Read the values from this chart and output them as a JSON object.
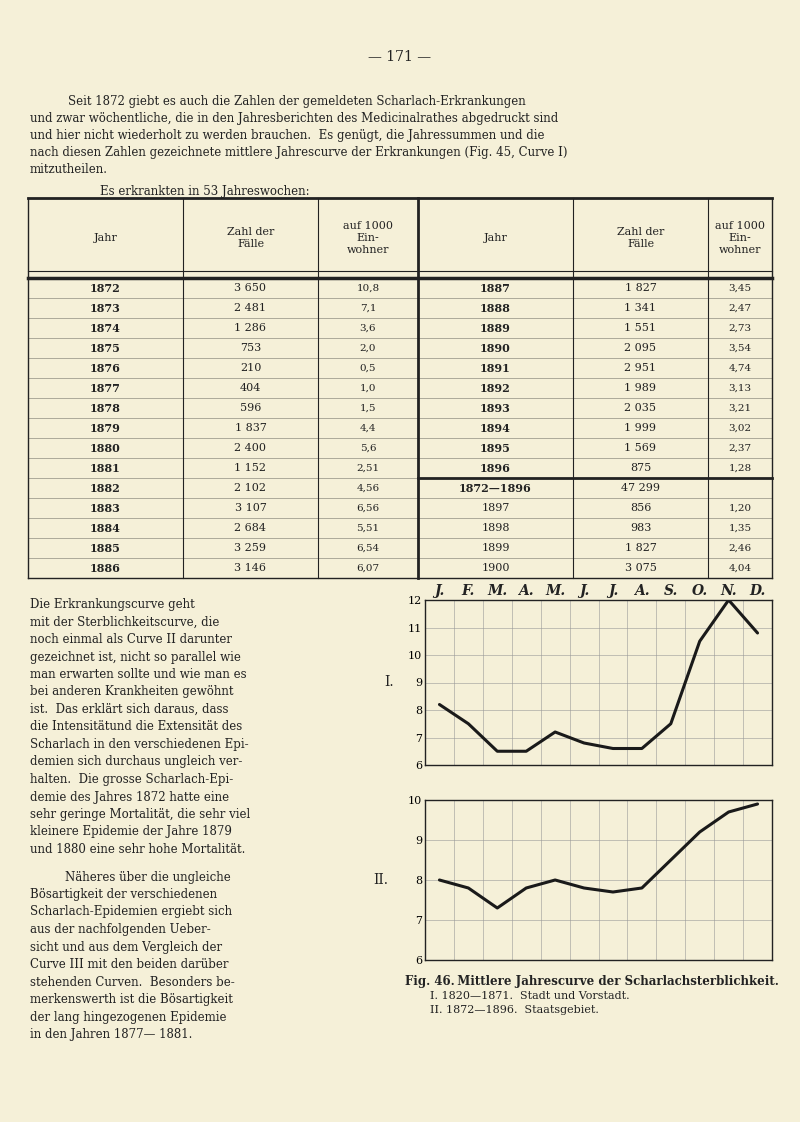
{
  "page_number": "171",
  "bg_color": "#f5f0d8",
  "intro_text_lines": [
    [
      "indent",
      "Seit 1872 giebt es auch die Zahlen der gemeldeten Scharlach-Erkrankungen"
    ],
    [
      "left",
      "und zwar wöchentliche, die in den Jahresberichten des Medicinalrathes abgedruckt sind"
    ],
    [
      "left",
      "und hier nicht wiederholt zu werden brauchen.  Es genügt, die Jahressummen und die"
    ],
    [
      "left",
      "nach diesen Zahlen gezeichnete mittlere Jahrescurve der Erkrankungen (Fig. 45, Curve I)"
    ],
    [
      "left",
      "mitzutheilen."
    ]
  ],
  "table_title": "Es erkrankten in 53 Jahreswochen:",
  "table_left": [
    [
      "1872",
      "3 650",
      "10,8"
    ],
    [
      "1873",
      "2 481",
      "7,1"
    ],
    [
      "1874",
      "1 286",
      "3,6"
    ],
    [
      "1875",
      "753",
      "2,0"
    ],
    [
      "1876",
      "210",
      "0,5"
    ],
    [
      "1877",
      "404",
      "1,0"
    ],
    [
      "1878",
      "596",
      "1,5"
    ],
    [
      "1879",
      "1 837",
      "4,4"
    ],
    [
      "1880",
      "2 400",
      "5,6"
    ],
    [
      "1881",
      "1 152",
      "2,51"
    ],
    [
      "1882",
      "2 102",
      "4,56"
    ],
    [
      "1883",
      "3 107",
      "6,56"
    ],
    [
      "1884",
      "2 684",
      "5,51"
    ],
    [
      "1885",
      "3 259",
      "6,54"
    ],
    [
      "1886",
      "3 146",
      "6,07"
    ]
  ],
  "table_right": [
    [
      "1887",
      "1 827",
      "3,45"
    ],
    [
      "1888",
      "1 341",
      "2,47"
    ],
    [
      "1889",
      "1 551",
      "2,73"
    ],
    [
      "1890",
      "2 095",
      "3,54"
    ],
    [
      "1891",
      "2 951",
      "4,74"
    ],
    [
      "1892",
      "1 989",
      "3,13"
    ],
    [
      "1893",
      "2 035",
      "3,21"
    ],
    [
      "1894",
      "1 999",
      "3,02"
    ],
    [
      "1895",
      "1 569",
      "2,37"
    ],
    [
      "1896",
      "875",
      "1,28"
    ],
    [
      "1872—1896",
      "47 299",
      ""
    ],
    [
      "1897",
      "856",
      "1,20"
    ],
    [
      "1898",
      "983",
      "1,35"
    ],
    [
      "1899",
      "1 827",
      "2,46"
    ],
    [
      "1900",
      "3 075",
      "4,04"
    ]
  ],
  "para1_lines": [
    "Die Erkrankungscurve geht",
    "mit der Sterblichkeitscurve, die",
    "noch einmal als Curve II darunter",
    "gezeichnet ist, nicht so parallel wie",
    "man erwarten sollte und wie man es",
    "bei anderen Krankheiten gewöhnt",
    "ist.  Das erklärt sich daraus, dass",
    "die Intensitätund die Extensität des",
    "Scharlach in den verschiedenen Epi-",
    "demien sich durchaus ungleich ver-",
    "halten.  Die grosse Scharlach-Epi-",
    "demie des Jahres 1872 hatte eine",
    "sehr geringe Mortalität, die sehr viel",
    "kleinere Epidemie der Jahre 1879",
    "und 1880 eine sehr hohe Mortalität."
  ],
  "para2_lines": [
    "Näheres über die ungleiche",
    "Bösartigkeit der verschiedenen",
    "Scharlach-Epidemien ergiebt sich",
    "aus der nachfolgenden Ueber-",
    "sicht und aus dem Vergleich der",
    "Curve III mit den beiden darüber",
    "stehenden Curven.  Besonders be-",
    "merkenswerth ist die Bösartigkeit",
    "der lang hingezogenen Epidemie",
    "in den Jahren 1877— 1881."
  ],
  "month_labels": [
    "J.",
    "F.",
    "M.",
    "A.",
    "M.",
    "J.",
    "J.",
    "A.",
    "S.",
    "O.",
    "N.",
    "D."
  ],
  "curve1_label": "I.",
  "curve1_y": [
    8.2,
    7.5,
    6.5,
    6.5,
    7.2,
    6.8,
    6.6,
    6.6,
    7.5,
    10.5,
    12.0,
    10.8
  ],
  "curve1_ylim": [
    6,
    12
  ],
  "curve1_yticks": [
    6,
    7,
    8,
    9,
    10,
    11,
    12
  ],
  "curve2_label": "II.",
  "curve2_y": [
    8.0,
    7.8,
    7.3,
    7.8,
    8.0,
    7.8,
    7.7,
    7.8,
    8.5,
    9.2,
    9.7,
    9.9
  ],
  "curve2_ylim": [
    6,
    10
  ],
  "curve2_yticks": [
    6,
    7,
    8,
    9,
    10
  ],
  "fig_caption_bold": "Fig. 46.",
  "fig_caption_rest": "  Mittlere Jahrescurve der Scharlachsterblichkeit.",
  "fig_subcaption1": "I. 1820—1871.  Stadt und Vorstadt.",
  "fig_subcaption2": "II. 1872—1896.  Staatsgebiet.",
  "line_color": "#1a1a1a",
  "grid_color": "#999999",
  "table_line_color": "#222222",
  "text_color": "#222222",
  "text_fs": 8.5,
  "table_fs": 8.0
}
